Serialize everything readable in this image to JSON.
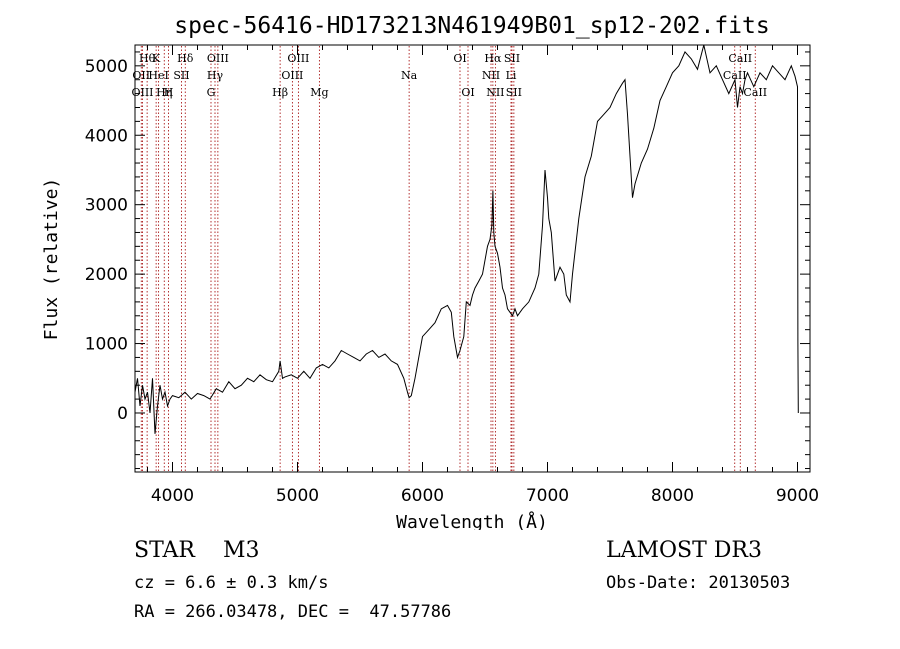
{
  "chart_data": {
    "type": "line",
    "title": "spec-56416-HD173213N461949B01_sp12-202.fits",
    "xlabel": "Wavelength (Å)",
    "ylabel": "Flux (relative)",
    "xlim": [
      3700,
      9100
    ],
    "ylim": [
      -850,
      5300
    ],
    "xticks": [
      4000,
      5000,
      6000,
      7000,
      8000,
      9000
    ],
    "yticks": [
      0,
      1000,
      2000,
      3000,
      4000,
      5000
    ],
    "series": [
      {
        "name": "flux",
        "x": [
          3700,
          3720,
          3740,
          3760,
          3780,
          3800,
          3820,
          3840,
          3860,
          3880,
          3900,
          3920,
          3940,
          3960,
          3980,
          4000,
          4050,
          4100,
          4150,
          4200,
          4250,
          4300,
          4350,
          4400,
          4450,
          4500,
          4550,
          4600,
          4650,
          4700,
          4750,
          4800,
          4850,
          4861,
          4880,
          4900,
          4950,
          5000,
          5050,
          5100,
          5150,
          5200,
          5250,
          5300,
          5350,
          5400,
          5450,
          5500,
          5550,
          5600,
          5650,
          5700,
          5750,
          5800,
          5850,
          5880,
          5893,
          5910,
          5940,
          5980,
          6000,
          6050,
          6100,
          6150,
          6200,
          6230,
          6250,
          6280,
          6300,
          6330,
          6350,
          6380,
          6400,
          6420,
          6450,
          6480,
          6500,
          6520,
          6540,
          6555,
          6563,
          6570,
          6580,
          6600,
          6620,
          6640,
          6660,
          6680,
          6700,
          6720,
          6740,
          6760,
          6800,
          6850,
          6900,
          6930,
          6960,
          6980,
          7000,
          7010,
          7030,
          7060,
          7100,
          7130,
          7150,
          7180,
          7200,
          7250,
          7300,
          7350,
          7400,
          7450,
          7500,
          7550,
          7600,
          7620,
          7640,
          7660,
          7680,
          7700,
          7750,
          7800,
          7850,
          7900,
          7950,
          8000,
          8050,
          8100,
          8150,
          8200,
          8250,
          8300,
          8350,
          8400,
          8450,
          8500,
          8520,
          8540,
          8560,
          8580,
          8600,
          8650,
          8700,
          8750,
          8800,
          8850,
          8900,
          8950,
          8980,
          9000,
          9003,
          9006
        ],
        "y": [
          300,
          500,
          100,
          400,
          200,
          300,
          0,
          500,
          -300,
          100,
          400,
          200,
          300,
          100,
          200,
          250,
          220,
          300,
          200,
          280,
          250,
          200,
          350,
          300,
          450,
          350,
          400,
          500,
          450,
          550,
          480,
          450,
          600,
          750,
          500,
          520,
          550,
          500,
          600,
          500,
          650,
          700,
          650,
          750,
          900,
          850,
          800,
          750,
          850,
          900,
          800,
          850,
          750,
          700,
          500,
          300,
          220,
          250,
          500,
          900,
          1100,
          1200,
          1300,
          1500,
          1550,
          1450,
          1100,
          800,
          900,
          1100,
          1600,
          1550,
          1700,
          1800,
          1900,
          2000,
          2200,
          2400,
          2500,
          2700,
          3200,
          2600,
          2400,
          2300,
          2100,
          1800,
          1700,
          1500,
          1450,
          1400,
          1500,
          1400,
          1500,
          1600,
          1800,
          2000,
          2700,
          3500,
          3100,
          2800,
          2600,
          1900,
          2100,
          2000,
          1700,
          1600,
          2000,
          2800,
          3400,
          3700,
          4200,
          4300,
          4400,
          4600,
          4750,
          4800,
          4300,
          3700,
          3100,
          3300,
          3600,
          3800,
          4100,
          4500,
          4700,
          4900,
          5000,
          5200,
          5100,
          4950,
          5300,
          4900,
          5000,
          4800,
          4600,
          4800,
          4400,
          4700,
          4600,
          4800,
          4900,
          4700,
          4900,
          4800,
          5000,
          4900,
          4800,
          5000,
          4850,
          4700,
          1000,
          0
        ]
      }
    ],
    "lines": [
      {
        "wave": 3750,
        "label": "OII",
        "row": 1
      },
      {
        "wave": 3760,
        "label": "OIII",
        "row": 2
      },
      {
        "wave": 3797,
        "label": "Hθ",
        "row": 0
      },
      {
        "wave": 3869,
        "label": "K",
        "row": 0
      },
      {
        "wave": 3889,
        "label": "HeI",
        "row": 1
      },
      {
        "wave": 3934,
        "label": "Hη",
        "row": 2
      },
      {
        "wave": 3968,
        "label": "H",
        "row": 2
      },
      {
        "wave": 4072,
        "label": "SII",
        "row": 1
      },
      {
        "wave": 4102,
        "label": "Hδ",
        "row": 0
      },
      {
        "wave": 4308,
        "label": "G",
        "row": 2
      },
      {
        "wave": 4340,
        "label": "Hγ",
        "row": 1
      },
      {
        "wave": 4363,
        "label": "OIII",
        "row": 0
      },
      {
        "wave": 4861,
        "label": "Hβ",
        "row": 2
      },
      {
        "wave": 4959,
        "label": "OIII",
        "row": 1
      },
      {
        "wave": 5007,
        "label": "OIII",
        "row": 0
      },
      {
        "wave": 5175,
        "label": "Mg",
        "row": 2
      },
      {
        "wave": 5893,
        "label": "Na",
        "row": 1
      },
      {
        "wave": 6300,
        "label": "OI",
        "row": 0
      },
      {
        "wave": 6364,
        "label": "OI",
        "row": 2
      },
      {
        "wave": 6548,
        "label": "NII",
        "row": 1
      },
      {
        "wave": 6563,
        "label": "Hα",
        "row": 0
      },
      {
        "wave": 6583,
        "label": "NII",
        "row": 2
      },
      {
        "wave": 6708,
        "label": "Li",
        "row": 1
      },
      {
        "wave": 6716,
        "label": "SII",
        "row": 0
      },
      {
        "wave": 6731,
        "label": "SII",
        "row": 2
      },
      {
        "wave": 8498,
        "label": "CaII",
        "row": 1
      },
      {
        "wave": 8542,
        "label": "CaII",
        "row": 0
      },
      {
        "wave": 8662,
        "label": "CaII",
        "row": 2
      }
    ]
  },
  "info": {
    "star": "STAR    M3",
    "survey": "LAMOST DR3",
    "cz": "cz = 6.6 ± 0.3 km/s",
    "obs_date": "Obs-Date: 20130503",
    "radec": "RA = 266.03478, DEC =  47.57786"
  },
  "colors": {
    "line_marker": "#a00000",
    "spectrum": "#000000",
    "axes": "#000000"
  }
}
